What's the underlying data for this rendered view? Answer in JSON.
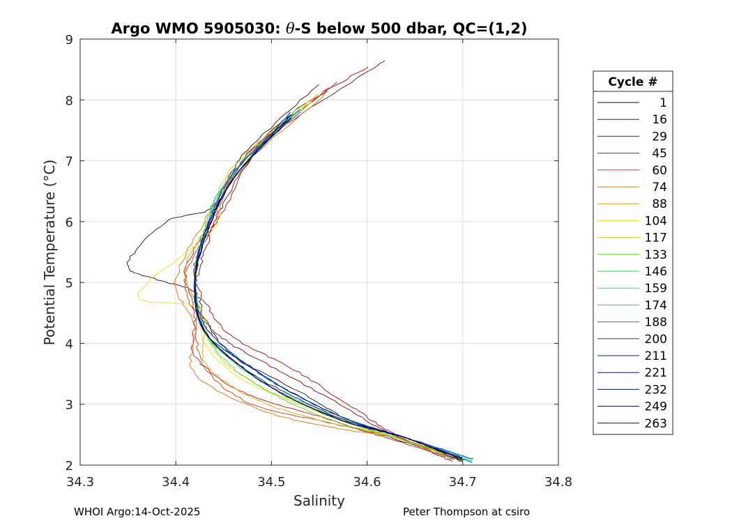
{
  "chart_data": {
    "type": "line",
    "title_prefix": "Argo WMO 5905030: ",
    "title_symbol": "θ",
    "title_suffix": "-S below 500 dbar,  QC=(1,2)",
    "xlabel": "Salinity",
    "ylabel": "Potential Temperature (°C)",
    "xlim": [
      34.3,
      34.8
    ],
    "ylim": [
      2,
      9
    ],
    "xticks": [
      34.3,
      34.4,
      34.5,
      34.6,
      34.7,
      34.8
    ],
    "xtick_labels": [
      "34.3",
      "34.4",
      "34.5",
      "34.6",
      "34.7",
      "34.8"
    ],
    "yticks": [
      2,
      3,
      4,
      5,
      6,
      7,
      8,
      9
    ],
    "ytick_labels": [
      "2",
      "3",
      "4",
      "5",
      "6",
      "7",
      "8",
      "9"
    ],
    "grid": true,
    "legend_title": "Cycle #",
    "legend_position": "right",
    "series": [
      {
        "name": "1",
        "color": "#2a0b0b",
        "curve": [
          [
            34.55,
            8.25
          ],
          [
            34.47,
            7.1
          ],
          [
            34.44,
            6.25
          ],
          [
            34.39,
            6.0
          ],
          [
            34.35,
            5.3
          ],
          [
            34.38,
            5.05
          ],
          [
            34.42,
            4.85
          ],
          [
            34.43,
            4.4
          ],
          [
            34.46,
            3.8
          ],
          [
            34.53,
            3.2
          ],
          [
            34.6,
            2.6
          ],
          [
            34.7,
            2.08
          ]
        ]
      },
      {
        "name": "16",
        "color": "#7a0a0a",
        "curve": [
          [
            34.62,
            8.65
          ],
          [
            34.5,
            7.4
          ],
          [
            34.45,
            6.3
          ],
          [
            34.43,
            5.5
          ],
          [
            34.42,
            4.8
          ],
          [
            34.44,
            4.2
          ],
          [
            34.49,
            3.7
          ],
          [
            34.56,
            3.1
          ],
          [
            34.62,
            2.55
          ],
          [
            34.69,
            2.06
          ]
        ]
      },
      {
        "name": "29",
        "color": "#a00c0c",
        "curve": [
          [
            34.6,
            8.55
          ],
          [
            34.5,
            7.5
          ],
          [
            34.45,
            6.2
          ],
          [
            34.42,
            5.3
          ],
          [
            34.43,
            4.7
          ],
          [
            34.46,
            4.1
          ],
          [
            34.52,
            3.6
          ],
          [
            34.58,
            3.0
          ],
          [
            34.63,
            2.5
          ],
          [
            34.7,
            2.05
          ]
        ]
      },
      {
        "name": "45",
        "color": "#c0140c",
        "curve": [
          [
            34.57,
            8.3
          ],
          [
            34.48,
            7.2
          ],
          [
            34.44,
            6.1
          ],
          [
            34.41,
            5.2
          ],
          [
            34.42,
            4.5
          ],
          [
            34.42,
            3.8
          ],
          [
            34.47,
            3.2
          ],
          [
            34.55,
            2.8
          ],
          [
            34.62,
            2.45
          ],
          [
            34.69,
            2.1
          ]
        ]
      },
      {
        "name": "60",
        "color": "#cf3a10",
        "curve": [
          [
            34.56,
            8.2
          ],
          [
            34.47,
            7.0
          ],
          [
            34.44,
            6.0
          ],
          [
            34.41,
            5.1
          ],
          [
            34.42,
            4.4
          ],
          [
            34.43,
            3.6
          ],
          [
            34.48,
            3.0
          ],
          [
            34.56,
            2.7
          ],
          [
            34.63,
            2.45
          ],
          [
            34.7,
            2.12
          ]
        ]
      },
      {
        "name": "74",
        "color": "#d9740f",
        "curve": [
          [
            34.56,
            8.15
          ],
          [
            34.47,
            6.9
          ],
          [
            34.43,
            6.0
          ],
          [
            34.4,
            5.0
          ],
          [
            34.42,
            4.3
          ],
          [
            34.42,
            3.5
          ],
          [
            34.49,
            2.9
          ],
          [
            34.57,
            2.6
          ],
          [
            34.63,
            2.45
          ],
          [
            34.7,
            2.1
          ]
        ]
      },
      {
        "name": "88",
        "color": "#d9a80f",
        "curve": [
          [
            34.55,
            8.1
          ],
          [
            34.46,
            6.8
          ],
          [
            34.44,
            6.1
          ],
          [
            34.41,
            5.2
          ],
          [
            34.43,
            4.4
          ],
          [
            34.43,
            3.7
          ],
          [
            34.48,
            3.1
          ],
          [
            34.56,
            2.7
          ],
          [
            34.63,
            2.45
          ],
          [
            34.7,
            2.08
          ]
        ]
      },
      {
        "name": "104",
        "color": "#f2e01a",
        "curve": [
          [
            34.54,
            8.0
          ],
          [
            34.45,
            6.6
          ],
          [
            34.44,
            5.9
          ],
          [
            34.36,
            4.8
          ],
          [
            34.42,
            4.6
          ],
          [
            34.43,
            4.0
          ],
          [
            34.47,
            3.4
          ],
          [
            34.55,
            2.9
          ],
          [
            34.63,
            2.45
          ],
          [
            34.7,
            2.06
          ]
        ]
      },
      {
        "name": "117",
        "color": "#b5e41a",
        "curve": [
          [
            34.54,
            7.95
          ],
          [
            34.46,
            6.9
          ],
          [
            34.43,
            5.9
          ],
          [
            34.42,
            5.0
          ],
          [
            34.43,
            4.3
          ],
          [
            34.45,
            3.7
          ],
          [
            34.5,
            3.2
          ],
          [
            34.57,
            2.75
          ],
          [
            34.63,
            2.45
          ],
          [
            34.7,
            2.08
          ]
        ]
      },
      {
        "name": "133",
        "color": "#5fd81f",
        "curve": [
          [
            34.53,
            7.9
          ],
          [
            34.46,
            6.8
          ],
          [
            34.43,
            5.9
          ],
          [
            34.42,
            5.0
          ],
          [
            34.43,
            4.2
          ],
          [
            34.46,
            3.6
          ],
          [
            34.51,
            3.1
          ],
          [
            34.57,
            2.7
          ],
          [
            34.63,
            2.45
          ],
          [
            34.7,
            2.1
          ]
        ]
      },
      {
        "name": "146",
        "color": "#1fd859",
        "curve": [
          [
            34.53,
            7.85
          ],
          [
            34.46,
            6.8
          ],
          [
            34.43,
            5.8
          ],
          [
            34.42,
            5.0
          ],
          [
            34.43,
            4.2
          ],
          [
            34.46,
            3.7
          ],
          [
            34.51,
            3.2
          ],
          [
            34.58,
            2.75
          ],
          [
            34.64,
            2.45
          ],
          [
            34.71,
            2.1
          ]
        ]
      },
      {
        "name": "159",
        "color": "#1fd8b5",
        "curve": [
          [
            34.52,
            7.8
          ],
          [
            34.46,
            6.7
          ],
          [
            34.43,
            5.8
          ],
          [
            34.42,
            4.9
          ],
          [
            34.43,
            4.2
          ],
          [
            34.47,
            3.7
          ],
          [
            34.52,
            3.2
          ],
          [
            34.58,
            2.75
          ],
          [
            34.64,
            2.45
          ],
          [
            34.71,
            2.07
          ]
        ]
      },
      {
        "name": "174",
        "color": "#1fb2e8",
        "curve": [
          [
            34.52,
            7.75
          ],
          [
            34.45,
            6.6
          ],
          [
            34.43,
            5.8
          ],
          [
            34.42,
            5.0
          ],
          [
            34.43,
            4.3
          ],
          [
            34.47,
            3.7
          ],
          [
            34.52,
            3.2
          ],
          [
            34.58,
            2.75
          ],
          [
            34.64,
            2.45
          ],
          [
            34.71,
            2.04
          ]
        ]
      },
      {
        "name": "188",
        "color": "#1f74e3",
        "curve": [
          [
            34.53,
            7.85
          ],
          [
            34.46,
            6.8
          ],
          [
            34.43,
            5.8
          ],
          [
            34.42,
            5.0
          ],
          [
            34.43,
            4.2
          ],
          [
            34.47,
            3.6
          ],
          [
            34.52,
            3.1
          ],
          [
            34.58,
            2.72
          ],
          [
            34.64,
            2.45
          ],
          [
            34.71,
            2.05
          ]
        ]
      },
      {
        "name": "200",
        "color": "#1440c8",
        "curve": [
          [
            34.53,
            7.8
          ],
          [
            34.46,
            6.8
          ],
          [
            34.43,
            5.8
          ],
          [
            34.42,
            4.9
          ],
          [
            34.43,
            4.2
          ],
          [
            34.47,
            3.6
          ],
          [
            34.52,
            3.1
          ],
          [
            34.58,
            2.7
          ],
          [
            34.64,
            2.45
          ],
          [
            34.71,
            2.1
          ]
        ]
      },
      {
        "name": "211",
        "color": "#1020a8",
        "curve": [
          [
            34.52,
            7.8
          ],
          [
            34.46,
            6.7
          ],
          [
            34.43,
            5.8
          ],
          [
            34.42,
            5.0
          ],
          [
            34.43,
            4.2
          ],
          [
            34.47,
            3.7
          ],
          [
            34.52,
            3.2
          ],
          [
            34.58,
            2.75
          ],
          [
            34.64,
            2.45
          ],
          [
            34.7,
            2.12
          ]
        ]
      },
      {
        "name": "221",
        "color": "#0c1488",
        "curve": [
          [
            34.52,
            7.75
          ],
          [
            34.46,
            6.7
          ],
          [
            34.43,
            5.8
          ],
          [
            34.42,
            5.0
          ],
          [
            34.43,
            4.3
          ],
          [
            34.47,
            3.7
          ],
          [
            34.52,
            3.2
          ],
          [
            34.58,
            2.75
          ],
          [
            34.64,
            2.45
          ],
          [
            34.7,
            2.1
          ]
        ]
      },
      {
        "name": "232",
        "color": "#0a1070",
        "curve": [
          [
            34.52,
            7.75
          ],
          [
            34.46,
            6.7
          ],
          [
            34.43,
            5.7
          ],
          [
            34.42,
            4.9
          ],
          [
            34.43,
            4.2
          ],
          [
            34.47,
            3.6
          ],
          [
            34.52,
            3.15
          ],
          [
            34.58,
            2.72
          ],
          [
            34.64,
            2.45
          ],
          [
            34.7,
            2.1
          ]
        ]
      },
      {
        "name": "249",
        "color": "#060a48",
        "curve": [
          [
            34.52,
            7.7
          ],
          [
            34.46,
            6.7
          ],
          [
            34.43,
            5.7
          ],
          [
            34.42,
            4.9
          ],
          [
            34.43,
            4.2
          ],
          [
            34.47,
            3.6
          ],
          [
            34.52,
            3.1
          ],
          [
            34.58,
            2.7
          ],
          [
            34.64,
            2.45
          ],
          [
            34.7,
            2.08
          ]
        ]
      },
      {
        "name": "263",
        "color": "#0a0a3c",
        "curve": [
          [
            34.52,
            7.7
          ],
          [
            34.46,
            6.7
          ],
          [
            34.43,
            5.7
          ],
          [
            34.42,
            4.9
          ],
          [
            34.43,
            4.2
          ],
          [
            34.47,
            3.6
          ],
          [
            34.52,
            3.1
          ],
          [
            34.58,
            2.7
          ],
          [
            34.64,
            2.45
          ],
          [
            34.7,
            2.06
          ]
        ]
      }
    ]
  },
  "footer": {
    "left": "WHOI Argo:14-Oct-2025",
    "right": "Peter Thompson at csiro"
  }
}
